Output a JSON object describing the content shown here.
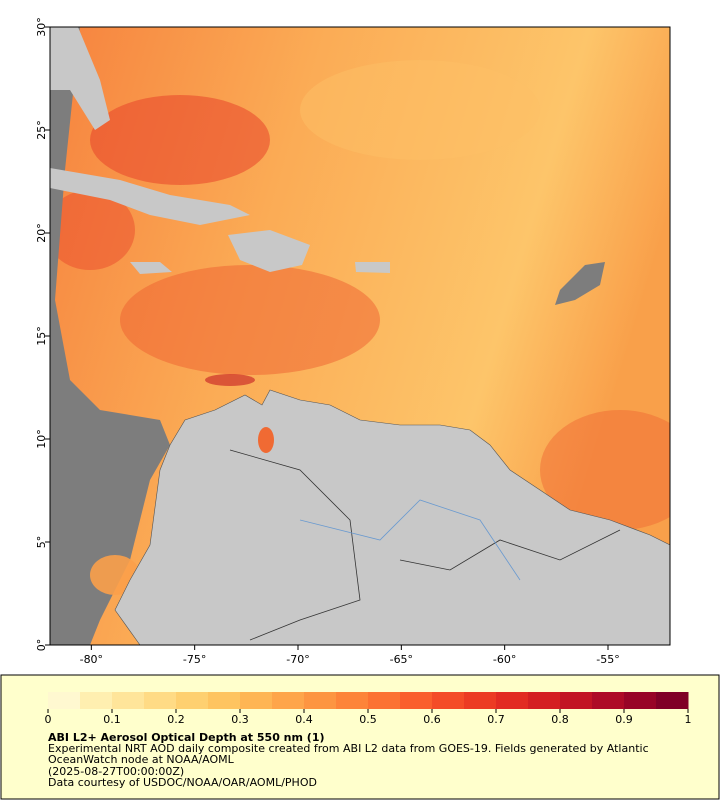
{
  "map": {
    "xlim": [
      -82,
      -52
    ],
    "ylim": [
      0,
      30
    ],
    "xticks": [
      {
        "value": -80,
        "label": "-80°"
      },
      {
        "value": -75,
        "label": "-75°"
      },
      {
        "value": -70,
        "label": "-70°"
      },
      {
        "value": -65,
        "label": "-65°"
      },
      {
        "value": -60,
        "label": "-60°"
      },
      {
        "value": -55,
        "label": "-55°"
      }
    ],
    "yticks": [
      {
        "value": 0,
        "label": "0°"
      },
      {
        "value": 5,
        "label": "5°"
      },
      {
        "value": 10,
        "label": "10°"
      },
      {
        "value": 15,
        "label": "15°"
      },
      {
        "value": 20,
        "label": "20°"
      },
      {
        "value": 25,
        "label": "25°"
      },
      {
        "value": 30,
        "label": "30°"
      }
    ]
  },
  "colorbar": {
    "lim": [
      0,
      1
    ],
    "ticks": [
      0,
      0.1,
      0.2,
      0.3,
      0.4,
      0.5,
      0.6,
      0.7,
      0.8,
      0.9,
      1
    ],
    "colors": [
      "#fff8d0",
      "#ffefb0",
      "#ffe59a",
      "#ffdb85",
      "#fed070",
      "#fec460",
      "#feb554",
      "#fea54a",
      "#fd9541",
      "#fd8439",
      "#fc7232",
      "#fa5f2c",
      "#f44c27",
      "#ec3b23",
      "#e22b22",
      "#d41f22",
      "#c21424",
      "#ae0b26",
      "#980426",
      "#800026"
    ]
  },
  "caption": {
    "title": "ABI L2+ Aerosol Optical Depth at 550 nm (1)",
    "lines": [
      "Experimental NRT AOD daily composite created from ABI L2 data from GOES-19. Fields generated by Atlantic",
      "OceanWatch node at NOAA/AOML",
      "(2025-08-27T00:00:00Z)",
      "Data courtesy of USDOC/NOAA/OAR/AOML/PHOD"
    ]
  }
}
